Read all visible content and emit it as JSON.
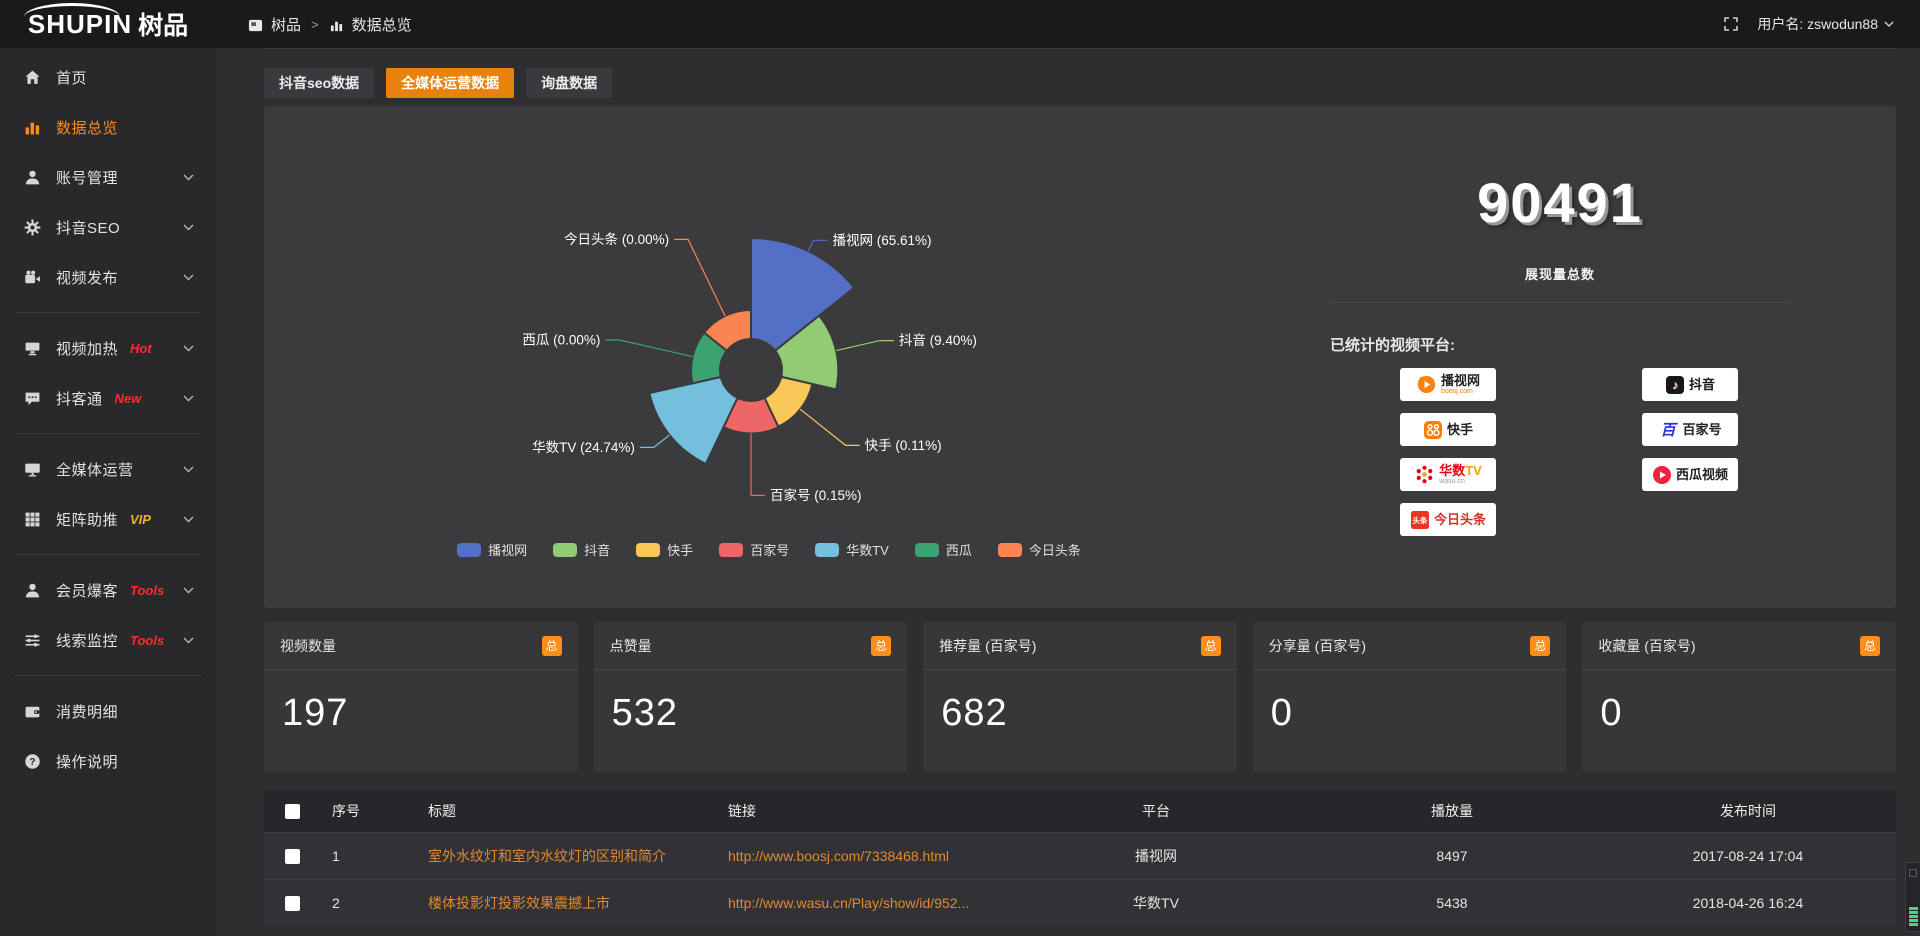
{
  "topbar": {
    "logo_main": "SHUPIN",
    "logo_sub": "树品",
    "breadcrumb": {
      "root": "树品",
      "separator": ">",
      "current": "数据总览"
    },
    "username": "用户名: zswodun88"
  },
  "sidebar": {
    "items": [
      {
        "id": "home",
        "icon": "home",
        "label": "首页"
      },
      {
        "id": "data-overview",
        "icon": "chart",
        "label": "数据总览",
        "active": true
      },
      {
        "id": "account-manage",
        "icon": "user",
        "label": "账号管理",
        "chevron": true
      },
      {
        "id": "douyin-seo",
        "icon": "gear",
        "label": "抖音SEO",
        "chevron": true
      },
      {
        "id": "video-publish",
        "icon": "video",
        "label": "视频发布",
        "chevron": true,
        "divider_after": true
      },
      {
        "id": "video-heat",
        "icon": "screen",
        "label": "视频加热",
        "badge": "Hot",
        "badge_color": "#ff2b2b",
        "chevron": true
      },
      {
        "id": "douketong",
        "icon": "chat",
        "label": "抖客通",
        "badge": "New",
        "badge_color": "#ff2b2b",
        "chevron": true,
        "divider_after": true
      },
      {
        "id": "media-operation",
        "icon": "monitor",
        "label": "全媒体运营",
        "chevron": true
      },
      {
        "id": "matrix-boost",
        "icon": "grid",
        "label": "矩阵助推",
        "badge": "VIP",
        "badge_color": "#f0b41e",
        "chevron": true,
        "divider_after": true
      },
      {
        "id": "member-burst",
        "icon": "person",
        "label": "会员爆客",
        "badge": "Tools",
        "badge_color": "#ff2b2b",
        "chevron": true
      },
      {
        "id": "clue-monitor",
        "icon": "sliders",
        "label": "线索监控",
        "badge": "Tools",
        "badge_color": "#ff2b2b",
        "chevron": true,
        "divider_after": true
      },
      {
        "id": "consumption",
        "icon": "wallet",
        "label": "消费明细"
      },
      {
        "id": "instructions",
        "icon": "help",
        "label": "操作说明"
      }
    ]
  },
  "tabs": [
    {
      "id": "douyin-seo-data",
      "label": "抖音seo数据",
      "active": false
    },
    {
      "id": "media-op-data",
      "label": "全媒体运营数据",
      "active": true
    },
    {
      "id": "inquiry-data",
      "label": "询盘数据",
      "active": false
    }
  ],
  "chart_data": {
    "type": "pie",
    "rose": true,
    "legend_position": "bottom",
    "items": [
      {
        "name": "播视网",
        "pct": 65.61,
        "color": "#5470c6",
        "line_len": 12
      },
      {
        "name": "抖音",
        "pct": 9.4,
        "color": "#91cc75",
        "line_len": 45
      },
      {
        "name": "快手",
        "pct": 0.11,
        "color": "#fac858",
        "line_len": 58
      },
      {
        "name": "百家号",
        "pct": 0.15,
        "color": "#ee6666",
        "line_len": 62
      },
      {
        "name": "华数TV",
        "pct": 24.74,
        "color": "#73c0de",
        "line_len": 20
      },
      {
        "name": "西瓜",
        "pct": 0.0,
        "color": "#3ba272",
        "line_len": 75
      },
      {
        "name": "今日头条",
        "pct": 0.0,
        "color": "#fc8452",
        "line_len": 85
      }
    ]
  },
  "summary": {
    "total_value": "90491",
    "total_label": "展现量总数",
    "platforms_label": "已统计的视频平台:",
    "platform_columns": [
      [
        {
          "icon": "boosj",
          "name_parts": [
            {
              "t": "播视网",
              "c": "#222222"
            }
          ],
          "sub": "boosj.com",
          "sub_color": "#f57c00"
        },
        {
          "icon": "kuaishou",
          "name_parts": [
            {
              "t": "快手",
              "c": "#222222"
            }
          ]
        },
        {
          "icon": "wasu",
          "name_parts": [
            {
              "t": "华数",
              "c": "#e60012"
            },
            {
              "t": "TV",
              "c": "#f5a100"
            }
          ],
          "sub": "wasu.cn",
          "sub_color": "#999999"
        },
        {
          "icon": "toutiao",
          "name_parts": [
            {
              "t": "今日头条",
              "c": "#d03327"
            }
          ]
        }
      ],
      [
        {
          "icon": "douyin",
          "name_parts": [
            {
              "t": "抖音",
              "c": "#17171c"
            }
          ]
        },
        {
          "icon": "baijiahao",
          "name_parts": [
            {
              "t": "百家号",
              "c": "#222222"
            }
          ]
        },
        {
          "icon": "xigua",
          "name_parts": [
            {
              "t": "西瓜视频",
              "c": "#222222"
            }
          ]
        }
      ]
    ]
  },
  "stat_cards": [
    {
      "label": "视频数量",
      "badge": "总",
      "value": "197"
    },
    {
      "label": "点赞量",
      "badge": "总",
      "value": "532"
    },
    {
      "label": "推荐量 (百家号)",
      "badge": "总",
      "value": "682"
    },
    {
      "label": "分享量 (百家号)",
      "badge": "总",
      "value": "0"
    },
    {
      "label": "收藏量 (百家号)",
      "badge": "总",
      "value": "0"
    }
  ],
  "table": {
    "columns": [
      "序号",
      "标题",
      "链接",
      "平台",
      "播放量",
      "发布时间"
    ],
    "rows": [
      {
        "id": "1",
        "title": "室外水纹灯和室内水纹灯的区别和简介",
        "link": "http://www.boosj.com/7338468.html",
        "platform": "播视网",
        "plays": "8497",
        "time": "2017-08-24 17:04"
      },
      {
        "id": "2",
        "title": "楼体投影灯投影效果震撼上市",
        "link": "http://www.wasu.cn/Play/show/id/952...",
        "platform": "华数TV",
        "plays": "5438",
        "time": "2018-04-26 16:24"
      }
    ]
  },
  "colors": {
    "accent": "#e8820e",
    "badge_orange": "#ff8d1a",
    "link_text": "#e08a2e",
    "active_menu": "#ff8a1e"
  }
}
